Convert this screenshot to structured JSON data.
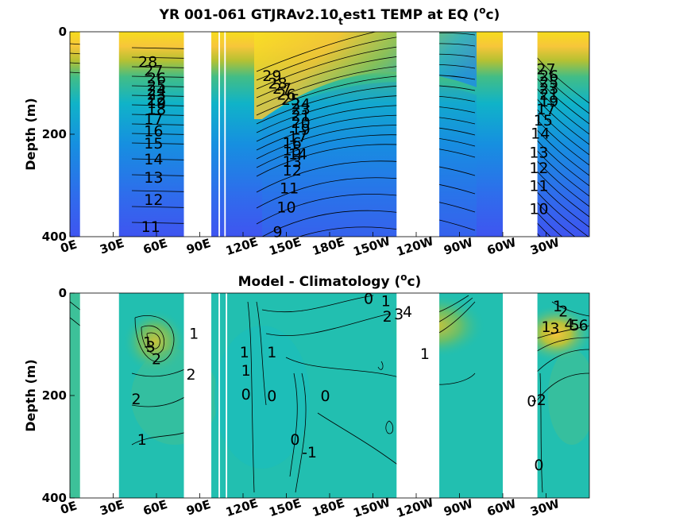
{
  "chart_data": [
    {
      "type": "heatmap",
      "title": {
        "main": "YR 001-061 GTJRAv2.10",
        "sub": "t",
        "rest": "est1 TEMP at EQ (",
        "sup": "o",
        "end": "c)"
      },
      "ylabel": "Depth (m)",
      "xlabel": "",
      "x_tick_labels": [
        "0E",
        "30E",
        "60E",
        "90E",
        "120E",
        "150E",
        "180E",
        "150W",
        "120W",
        "90W",
        "60W",
        "30W"
      ],
      "x_ticks_deg": [
        0,
        30,
        60,
        90,
        120,
        150,
        180,
        210,
        240,
        270,
        300,
        330
      ],
      "y_tick_labels": [
        "0",
        "200",
        "400"
      ],
      "y_ticks": [
        0,
        200,
        400
      ],
      "xlim": [
        0,
        360
      ],
      "ylim": [
        0,
        400
      ],
      "colorscale": "parula",
      "contour_labels": [
        {
          "text": "28",
          "lon": 54,
          "depth": 58
        },
        {
          "text": "27",
          "lon": 58,
          "depth": 75
        },
        {
          "text": "26",
          "lon": 60,
          "depth": 90
        },
        {
          "text": "25",
          "lon": 60,
          "depth": 105
        },
        {
          "text": "24",
          "lon": 60,
          "depth": 113
        },
        {
          "text": "23",
          "lon": 60,
          "depth": 122
        },
        {
          "text": "22",
          "lon": 60,
          "depth": 132
        },
        {
          "text": "19",
          "lon": 60,
          "depth": 138
        },
        {
          "text": "18",
          "lon": 60,
          "depth": 150
        },
        {
          "text": "17",
          "lon": 58,
          "depth": 170
        },
        {
          "text": "16",
          "lon": 58,
          "depth": 193
        },
        {
          "text": "15",
          "lon": 58,
          "depth": 217
        },
        {
          "text": "14",
          "lon": 58,
          "depth": 248
        },
        {
          "text": "13",
          "lon": 58,
          "depth": 284
        },
        {
          "text": "12",
          "lon": 58,
          "depth": 327
        },
        {
          "text": "11",
          "lon": 56,
          "depth": 380
        },
        {
          "text": "29",
          "lon": 140,
          "depth": 85
        },
        {
          "text": "28",
          "lon": 144,
          "depth": 100
        },
        {
          "text": "27",
          "lon": 147,
          "depth": 110
        },
        {
          "text": "26",
          "lon": 150,
          "depth": 122
        },
        {
          "text": "25",
          "lon": 153,
          "depth": 132
        },
        {
          "text": "24",
          "lon": 160,
          "depth": 140
        },
        {
          "text": "23",
          "lon": 160,
          "depth": 150
        },
        {
          "text": "21",
          "lon": 160,
          "depth": 163
        },
        {
          "text": "20",
          "lon": 160,
          "depth": 177
        },
        {
          "text": "19",
          "lon": 160,
          "depth": 190
        },
        {
          "text": "17",
          "lon": 158,
          "depth": 204
        },
        {
          "text": "16",
          "lon": 154,
          "depth": 216
        },
        {
          "text": "15",
          "lon": 154,
          "depth": 230
        },
        {
          "text": "14",
          "lon": 158,
          "depth": 238
        },
        {
          "text": "13",
          "lon": 154,
          "depth": 253
        },
        {
          "text": "12",
          "lon": 154,
          "depth": 270
        },
        {
          "text": "11",
          "lon": 152,
          "depth": 305
        },
        {
          "text": "10",
          "lon": 150,
          "depth": 342
        },
        {
          "text": "9",
          "lon": 144,
          "depth": 390
        },
        {
          "text": "27",
          "lon": 330,
          "depth": 72
        },
        {
          "text": "26",
          "lon": 332,
          "depth": 85
        },
        {
          "text": "25",
          "lon": 332,
          "depth": 98
        },
        {
          "text": "23",
          "lon": 332,
          "depth": 110
        },
        {
          "text": "21",
          "lon": 332,
          "depth": 122
        },
        {
          "text": "19",
          "lon": 332,
          "depth": 135
        },
        {
          "text": "17",
          "lon": 330,
          "depth": 150
        },
        {
          "text": "15",
          "lon": 328,
          "depth": 172
        },
        {
          "text": "14",
          "lon": 326,
          "depth": 198
        },
        {
          "text": "13",
          "lon": 325,
          "depth": 235
        },
        {
          "text": "12",
          "lon": 325,
          "depth": 265
        },
        {
          "text": "11",
          "lon": 325,
          "depth": 300
        },
        {
          "text": "10",
          "lon": 325,
          "depth": 345
        }
      ],
      "mask_ranges_deg": [
        [
          7,
          34
        ],
        [
          79,
          98
        ],
        [
          103,
          104
        ],
        [
          107,
          108
        ],
        [
          226.4,
          256
        ],
        [
          300,
          324
        ]
      ]
    },
    {
      "type": "heatmap",
      "title": {
        "main": "Model - Climatology (",
        "sup": "o",
        "end": "c)"
      },
      "ylabel": "Depth (m)",
      "xlabel": "",
      "x_tick_labels": [
        "0E",
        "30E",
        "60E",
        "90E",
        "120E",
        "150E",
        "180E",
        "150W",
        "120W",
        "90W",
        "60W",
        "30W"
      ],
      "x_ticks_deg": [
        0,
        30,
        60,
        90,
        120,
        150,
        180,
        210,
        240,
        270,
        300,
        330
      ],
      "y_tick_labels": [
        "0",
        "200",
        "400"
      ],
      "y_ticks": [
        0,
        200,
        400
      ],
      "xlim": [
        0,
        360
      ],
      "ylim": [
        0,
        400
      ],
      "colorscale": "parula",
      "contour_labels": [
        {
          "text": "1",
          "lon": 86,
          "depth": 78
        },
        {
          "text": "1",
          "lon": 54,
          "depth": 95
        },
        {
          "text": "3",
          "lon": 56,
          "depth": 104
        },
        {
          "text": "2",
          "lon": 60,
          "depth": 128
        },
        {
          "text": "2",
          "lon": 84,
          "depth": 158
        },
        {
          "text": "2",
          "lon": 46,
          "depth": 206
        },
        {
          "text": "1",
          "lon": 50,
          "depth": 285
        },
        {
          "text": "1",
          "lon": 121,
          "depth": 115
        },
        {
          "text": "1",
          "lon": 122,
          "depth": 150
        },
        {
          "text": "0",
          "lon": 122,
          "depth": 197
        },
        {
          "text": "1",
          "lon": 140,
          "depth": 115
        },
        {
          "text": "0",
          "lon": 140,
          "depth": 200
        },
        {
          "text": "0",
          "lon": 156,
          "depth": 285
        },
        {
          "text": "-1",
          "lon": 166,
          "depth": 310
        },
        {
          "text": "0",
          "lon": 177,
          "depth": 200
        },
        {
          "text": "0",
          "lon": 207,
          "depth": 10
        },
        {
          "text": "1",
          "lon": 219,
          "depth": 15
        },
        {
          "text": "2",
          "lon": 220,
          "depth": 45
        },
        {
          "text": "3",
          "lon": 228,
          "depth": 40
        },
        {
          "text": "4",
          "lon": 234,
          "depth": 36
        },
        {
          "text": "1",
          "lon": 246,
          "depth": 118
        },
        {
          "text": "1",
          "lon": 338,
          "depth": 25
        },
        {
          "text": "2",
          "lon": 342,
          "depth": 35
        },
        {
          "text": "1",
          "lon": 330,
          "depth": 65
        },
        {
          "text": "3",
          "lon": 336,
          "depth": 68
        },
        {
          "text": "4",
          "lon": 346,
          "depth": 60
        },
        {
          "text": "5",
          "lon": 350,
          "depth": 62
        },
        {
          "text": "6",
          "lon": 356,
          "depth": 62
        },
        {
          "text": "0",
          "lon": 320,
          "depth": 210
        },
        {
          "text": "-2",
          "lon": 325,
          "depth": 208
        },
        {
          "text": "0",
          "lon": 325,
          "depth": 335
        }
      ],
      "mask_ranges_deg": [
        [
          7,
          34
        ],
        [
          79,
          98
        ],
        [
          103,
          104
        ],
        [
          108,
          109
        ],
        [
          226.4,
          256
        ],
        [
          300,
          324
        ]
      ]
    }
  ]
}
